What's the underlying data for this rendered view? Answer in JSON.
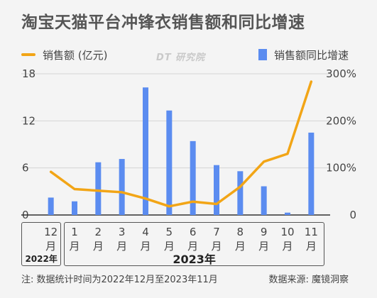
{
  "title": "淘宝天猫平台冲锋衣销售额和同比增速",
  "legend": {
    "line_label": "销售额 (亿元)",
    "bar_label": "销售额同比增速"
  },
  "watermark": "DT 研究院",
  "year_groups": [
    {
      "label": "2022年"
    },
    {
      "label": "2023年"
    }
  ],
  "footnote": "注: 数据统计时间为2022年12月至2023年11月",
  "source": "数据来源: 魔镜洞察",
  "colors": {
    "line": "#f2a516",
    "bar": "#5b8cf0",
    "grid": "#d4d4d4",
    "axis": "#333333"
  },
  "chart_data": {
    "type": "bar",
    "categories": [
      "12月",
      "1月",
      "2月",
      "3月",
      "4月",
      "5月",
      "6月",
      "7月",
      "8月",
      "9月",
      "10月",
      "11月"
    ],
    "series": [
      {
        "name": "销售额同比增速",
        "kind": "bar",
        "axis": "right",
        "values": [
          37,
          29,
          112,
          119,
          271,
          222,
          157,
          106,
          93,
          61,
          5,
          175
        ]
      },
      {
        "name": "销售额 (亿元)",
        "kind": "line",
        "axis": "left",
        "values": [
          5.5,
          3.3,
          3.1,
          2.9,
          2.1,
          1.1,
          1.7,
          1.4,
          3.6,
          6.8,
          7.8,
          17.0
        ]
      }
    ],
    "y_left": {
      "ticks": [
        "0",
        "6",
        "12",
        "18"
      ],
      "range": [
        0,
        18
      ]
    },
    "y_right": {
      "ticks": [
        "0",
        "100%",
        "200%",
        "300%"
      ],
      "range": [
        0,
        300
      ]
    },
    "grid": true
  }
}
